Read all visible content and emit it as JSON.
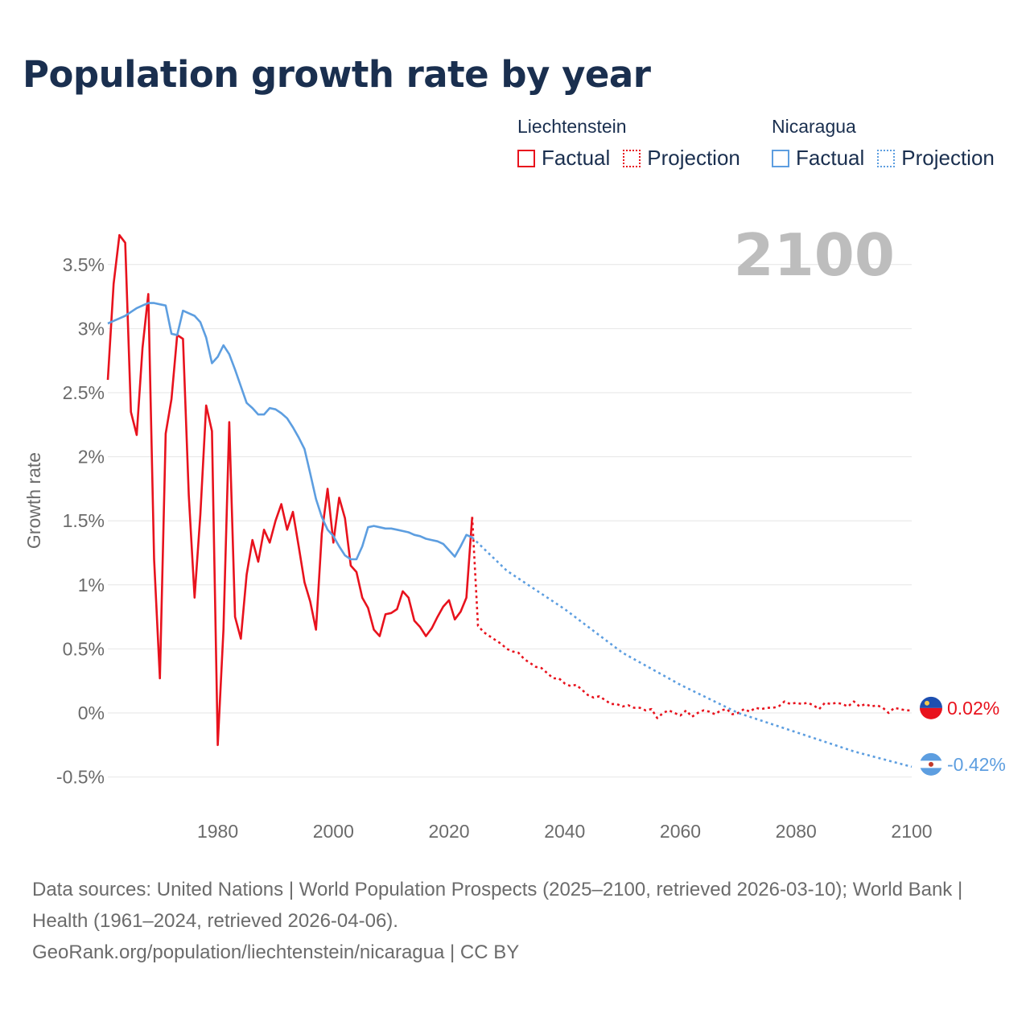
{
  "title": "Population growth rate by year",
  "legend": [
    {
      "country": "Liechtenstein",
      "color": "#e8121d",
      "factual_label": "Factual",
      "projection_label": "Projection"
    },
    {
      "country": "Nicaragua",
      "color": "#5d9ee0",
      "factual_label": "Factual",
      "projection_label": "Projection"
    }
  ],
  "footer": {
    "line1": "Data sources: United Nations | World Population Prospects (2025–2100, retrieved 2026-03-10); World Bank | Health (1961–2024, retrieved 2026-04-06).",
    "line2": "GeoRank.org/population/liechtenstein/nicaragua | CC BY"
  },
  "chart_data": {
    "type": "line",
    "title": "Population growth rate by year",
    "ylabel": "Growth rate",
    "xlabel": "",
    "current_year_label": "2100",
    "xlim": [
      1961,
      2100
    ],
    "ylim": [
      -0.7,
      3.8
    ],
    "x_ticks": [
      1980,
      2000,
      2020,
      2040,
      2060,
      2080,
      2100
    ],
    "y_ticks": [
      -0.5,
      0,
      0.5,
      1,
      1.5,
      2,
      2.5,
      3,
      3.5
    ],
    "y_tick_labels": [
      "-0.5%",
      "0%",
      "0.5%",
      "1%",
      "1.5%",
      "2%",
      "2.5%",
      "3%",
      "3.5%"
    ],
    "series": [
      {
        "name": "Liechtenstein",
        "color": "#e8121d",
        "end_label": "0.02%",
        "factual": {
          "x": [
            1961,
            1962,
            1963,
            1964,
            1965,
            1966,
            1967,
            1968,
            1969,
            1970,
            1971,
            1972,
            1973,
            1974,
            1975,
            1976,
            1977,
            1978,
            1979,
            1980,
            1981,
            1982,
            1983,
            1984,
            1985,
            1986,
            1987,
            1988,
            1989,
            1990,
            1991,
            1992,
            1993,
            1994,
            1995,
            1996,
            1997,
            1998,
            1999,
            2000,
            2001,
            2002,
            2003,
            2004,
            2005,
            2006,
            2007,
            2008,
            2009,
            2010,
            2011,
            2012,
            2013,
            2014,
            2015,
            2016,
            2017,
            2018,
            2019,
            2020,
            2021,
            2022,
            2023,
            2024
          ],
          "y": [
            2.6,
            3.35,
            3.73,
            3.67,
            2.35,
            2.17,
            2.85,
            3.27,
            1.2,
            0.27,
            2.18,
            2.45,
            2.95,
            2.92,
            1.7,
            0.9,
            1.55,
            2.4,
            2.2,
            -0.25,
            0.65,
            2.27,
            0.75,
            0.58,
            1.08,
            1.35,
            1.18,
            1.43,
            1.33,
            1.5,
            1.63,
            1.43,
            1.57,
            1.3,
            1.02,
            0.87,
            0.65,
            1.4,
            1.75,
            1.33,
            1.68,
            1.52,
            1.15,
            1.1,
            0.9,
            0.82,
            0.65,
            0.6,
            0.77,
            0.78,
            0.81,
            0.95,
            0.9,
            0.72,
            0.67,
            0.6,
            0.66,
            0.75,
            0.83,
            0.88,
            0.73,
            0.79,
            0.9,
            1.53
          ]
        },
        "projection": {
          "x": [
            2024,
            2025,
            2026,
            2027,
            2028,
            2029,
            2030,
            2031,
            2032,
            2033,
            2034,
            2035,
            2036,
            2037,
            2038,
            2039,
            2040,
            2041,
            2042,
            2043,
            2044,
            2045,
            2046,
            2047,
            2048,
            2049,
            2050,
            2051,
            2052,
            2053,
            2054,
            2055,
            2056,
            2057,
            2058,
            2059,
            2060,
            2061,
            2062,
            2063,
            2064,
            2065,
            2066,
            2067,
            2068,
            2069,
            2070,
            2071,
            2072,
            2073,
            2074,
            2075,
            2076,
            2077,
            2078,
            2079,
            2080,
            2081,
            2082,
            2083,
            2084,
            2085,
            2086,
            2087,
            2088,
            2089,
            2090,
            2091,
            2092,
            2093,
            2094,
            2095,
            2096,
            2097,
            2098,
            2099,
            2100
          ],
          "y": [
            1.53,
            0.68,
            0.63,
            0.6,
            0.57,
            0.54,
            0.5,
            0.48,
            0.47,
            0.42,
            0.39,
            0.36,
            0.35,
            0.31,
            0.27,
            0.27,
            0.23,
            0.21,
            0.22,
            0.18,
            0.14,
            0.12,
            0.13,
            0.1,
            0.07,
            0.07,
            0.05,
            0.06,
            0.04,
            0.04,
            0.02,
            0.03,
            -0.04,
            0.0,
            0.02,
            0.0,
            -0.02,
            0.02,
            -0.03,
            0.0,
            0.02,
            0.01,
            -0.01,
            0.02,
            0.03,
            -0.01,
            0.0,
            0.03,
            0.01,
            0.04,
            0.03,
            0.04,
            0.04,
            0.05,
            0.09,
            0.07,
            0.08,
            0.07,
            0.08,
            0.06,
            0.03,
            0.08,
            0.07,
            0.08,
            0.07,
            0.05,
            0.09,
            0.05,
            0.07,
            0.05,
            0.06,
            0.04,
            0.0,
            0.04,
            0.03,
            0.02,
            0.02
          ]
        }
      },
      {
        "name": "Nicaragua",
        "color": "#5d9ee0",
        "end_label": "-0.42%",
        "factual": {
          "x": [
            1961,
            1962,
            1963,
            1964,
            1965,
            1966,
            1967,
            1968,
            1969,
            1970,
            1971,
            1972,
            1973,
            1974,
            1975,
            1976,
            1977,
            1978,
            1979,
            1980,
            1981,
            1982,
            1983,
            1984,
            1985,
            1986,
            1987,
            1988,
            1989,
            1990,
            1991,
            1992,
            1993,
            1994,
            1995,
            1996,
            1997,
            1998,
            1999,
            2000,
            2001,
            2002,
            2003,
            2004,
            2005,
            2006,
            2007,
            2008,
            2009,
            2010,
            2011,
            2012,
            2013,
            2014,
            2015,
            2016,
            2017,
            2018,
            2019,
            2020,
            2021,
            2022,
            2023,
            2024
          ],
          "y": [
            3.04,
            3.06,
            3.08,
            3.1,
            3.13,
            3.16,
            3.18,
            3.2,
            3.2,
            3.19,
            3.18,
            2.96,
            2.95,
            3.14,
            3.12,
            3.1,
            3.05,
            2.93,
            2.73,
            2.78,
            2.87,
            2.8,
            2.68,
            2.55,
            2.42,
            2.38,
            2.33,
            2.33,
            2.38,
            2.37,
            2.34,
            2.3,
            2.23,
            2.15,
            2.06,
            1.87,
            1.67,
            1.53,
            1.43,
            1.38,
            1.3,
            1.23,
            1.2,
            1.2,
            1.3,
            1.45,
            1.46,
            1.45,
            1.44,
            1.44,
            1.43,
            1.42,
            1.41,
            1.39,
            1.38,
            1.36,
            1.35,
            1.34,
            1.32,
            1.27,
            1.22,
            1.3,
            1.39,
            1.37
          ]
        },
        "projection": {
          "x": [
            2024,
            2030,
            2040,
            2050,
            2060,
            2070,
            2080,
            2090,
            2100
          ],
          "y": [
            1.37,
            1.11,
            0.81,
            0.47,
            0.22,
            0.0,
            -0.15,
            -0.3,
            -0.42
          ]
        }
      }
    ]
  }
}
